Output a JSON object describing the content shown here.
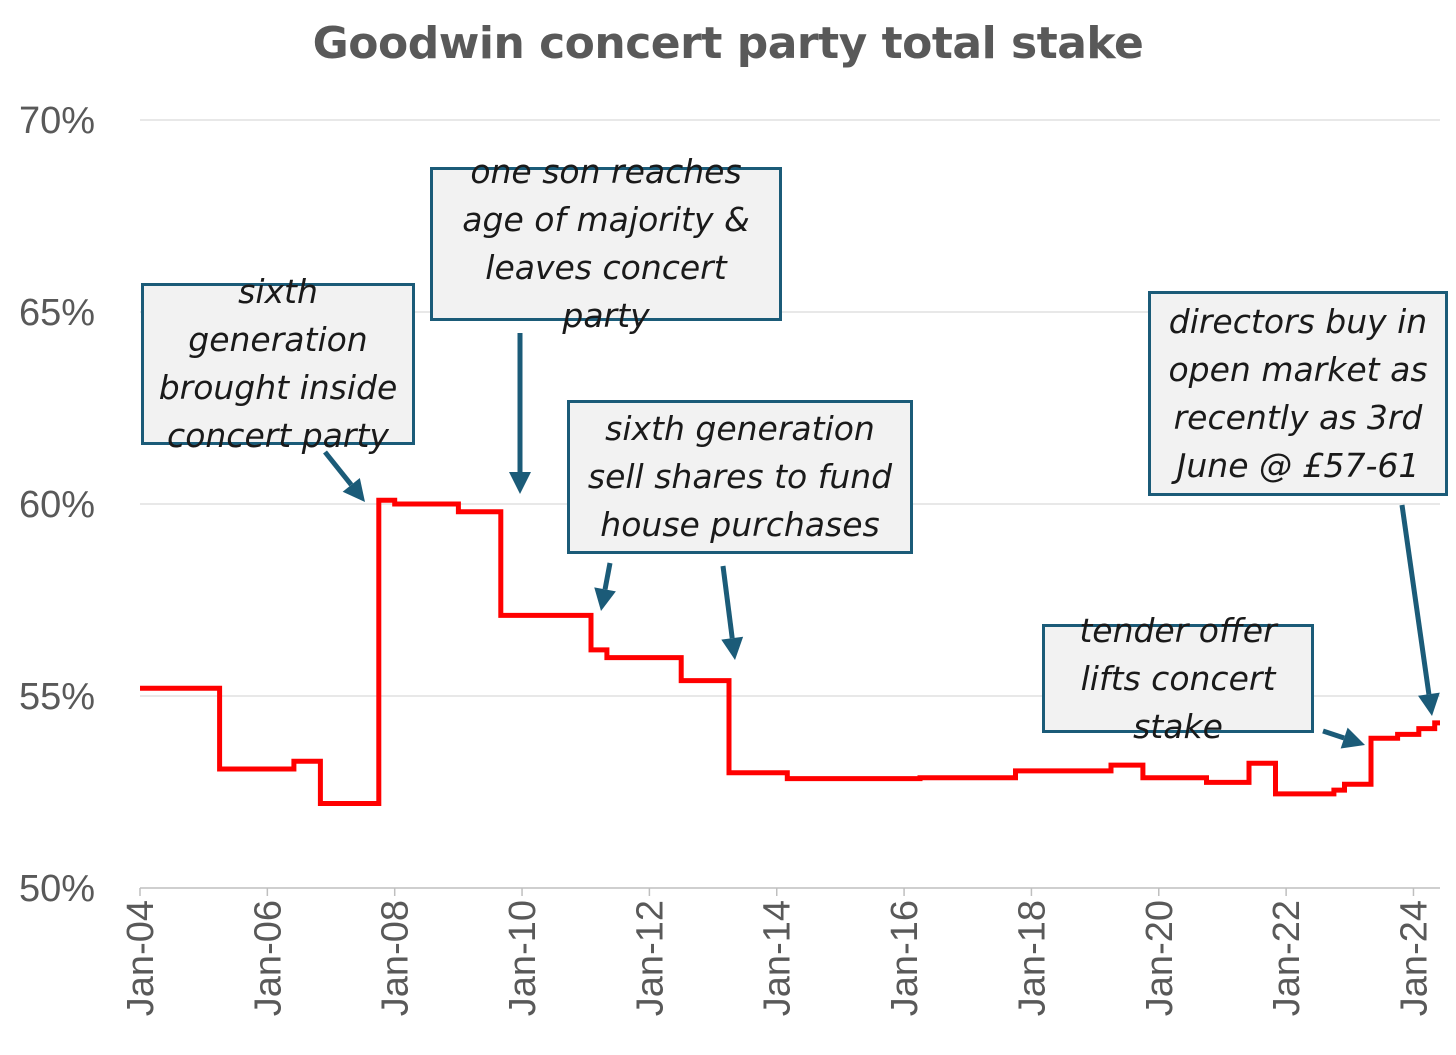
{
  "chart_data": {
    "type": "line",
    "title": "Goodwin concert party total stake",
    "ylim": [
      50,
      70
    ],
    "yticks": [
      "50%",
      "55%",
      "60%",
      "65%",
      "70%"
    ],
    "ytick_values": [
      50,
      55,
      60,
      65,
      70
    ],
    "xlim": [
      "2004-01",
      "2024-06"
    ],
    "xticks": [
      "Jan-04",
      "Jan-06",
      "Jan-08",
      "Jan-10",
      "Jan-12",
      "Jan-14",
      "Jan-16",
      "Jan-18",
      "Jan-20",
      "Jan-22",
      "Jan-24"
    ],
    "grid": "horizontal",
    "line_color": "#ff0000",
    "series": [
      {
        "step": true,
        "points": [
          [
            "2004-01",
            55.2
          ],
          [
            "2005-04",
            55.2
          ],
          [
            "2005-04",
            53.1
          ],
          [
            "2006-06",
            53.1
          ],
          [
            "2006-06",
            53.3
          ],
          [
            "2006-11",
            53.3
          ],
          [
            "2006-11",
            52.2
          ],
          [
            "2007-10",
            52.2
          ],
          [
            "2007-10",
            60.1
          ],
          [
            "2008-01",
            60.1
          ],
          [
            "2008-01",
            60.0
          ],
          [
            "2009-01",
            60.0
          ],
          [
            "2009-01",
            59.8
          ],
          [
            "2009-09",
            59.8
          ],
          [
            "2009-09",
            57.1
          ],
          [
            "2011-02",
            57.1
          ],
          [
            "2011-02",
            56.2
          ],
          [
            "2011-05",
            56.2
          ],
          [
            "2011-05",
            56.0
          ],
          [
            "2012-07",
            56.0
          ],
          [
            "2012-07",
            55.4
          ],
          [
            "2013-04",
            55.4
          ],
          [
            "2013-04",
            53.0
          ],
          [
            "2014-03",
            53.0
          ],
          [
            "2014-03",
            52.85
          ],
          [
            "2016-04",
            52.85
          ],
          [
            "2016-04",
            52.87
          ],
          [
            "2017-10",
            52.87
          ],
          [
            "2017-10",
            53.05
          ],
          [
            "2019-04",
            53.05
          ],
          [
            "2019-04",
            53.2
          ],
          [
            "2019-10",
            53.2
          ],
          [
            "2019-10",
            52.87
          ],
          [
            "2020-10",
            52.87
          ],
          [
            "2020-10",
            52.75
          ],
          [
            "2021-06",
            52.75
          ],
          [
            "2021-06",
            53.25
          ],
          [
            "2021-11",
            53.25
          ],
          [
            "2021-11",
            52.45
          ],
          [
            "2022-10",
            52.45
          ],
          [
            "2022-10",
            52.55
          ],
          [
            "2022-12",
            52.55
          ],
          [
            "2022-12",
            52.7
          ],
          [
            "2023-05",
            52.7
          ],
          [
            "2023-05",
            53.9
          ],
          [
            "2023-10",
            53.9
          ],
          [
            "2023-10",
            54.0
          ],
          [
            "2024-02",
            54.0
          ],
          [
            "2024-02",
            54.15
          ],
          [
            "2024-05",
            54.15
          ],
          [
            "2024-05",
            54.3
          ],
          [
            "2024-06",
            54.3
          ]
        ]
      }
    ],
    "annotations": [
      {
        "text": "sixth generation brought inside concert party",
        "lines": [
          "sixth generation",
          "brought inside",
          "concert party"
        ]
      },
      {
        "text": "one son reaches age of majority & leaves concert party",
        "lines": [
          "one son reaches age",
          "of majority & leaves",
          "concert party"
        ]
      },
      {
        "text": "sixth generation sell shares to fund house purchases",
        "lines": [
          "sixth generation sell",
          "shares to fund",
          "house purchases"
        ]
      },
      {
        "text": "directors buy in open market as recently as 3rd June @ £57-61",
        "lines": [
          "directors buy in",
          "open market as",
          "recently as 3rd",
          "June @ £57-61"
        ]
      },
      {
        "text": "tender offer lifts concert stake",
        "lines": [
          "tender offer lifts",
          "concert stake"
        ]
      }
    ],
    "annotation_color": "#1b5b78"
  }
}
